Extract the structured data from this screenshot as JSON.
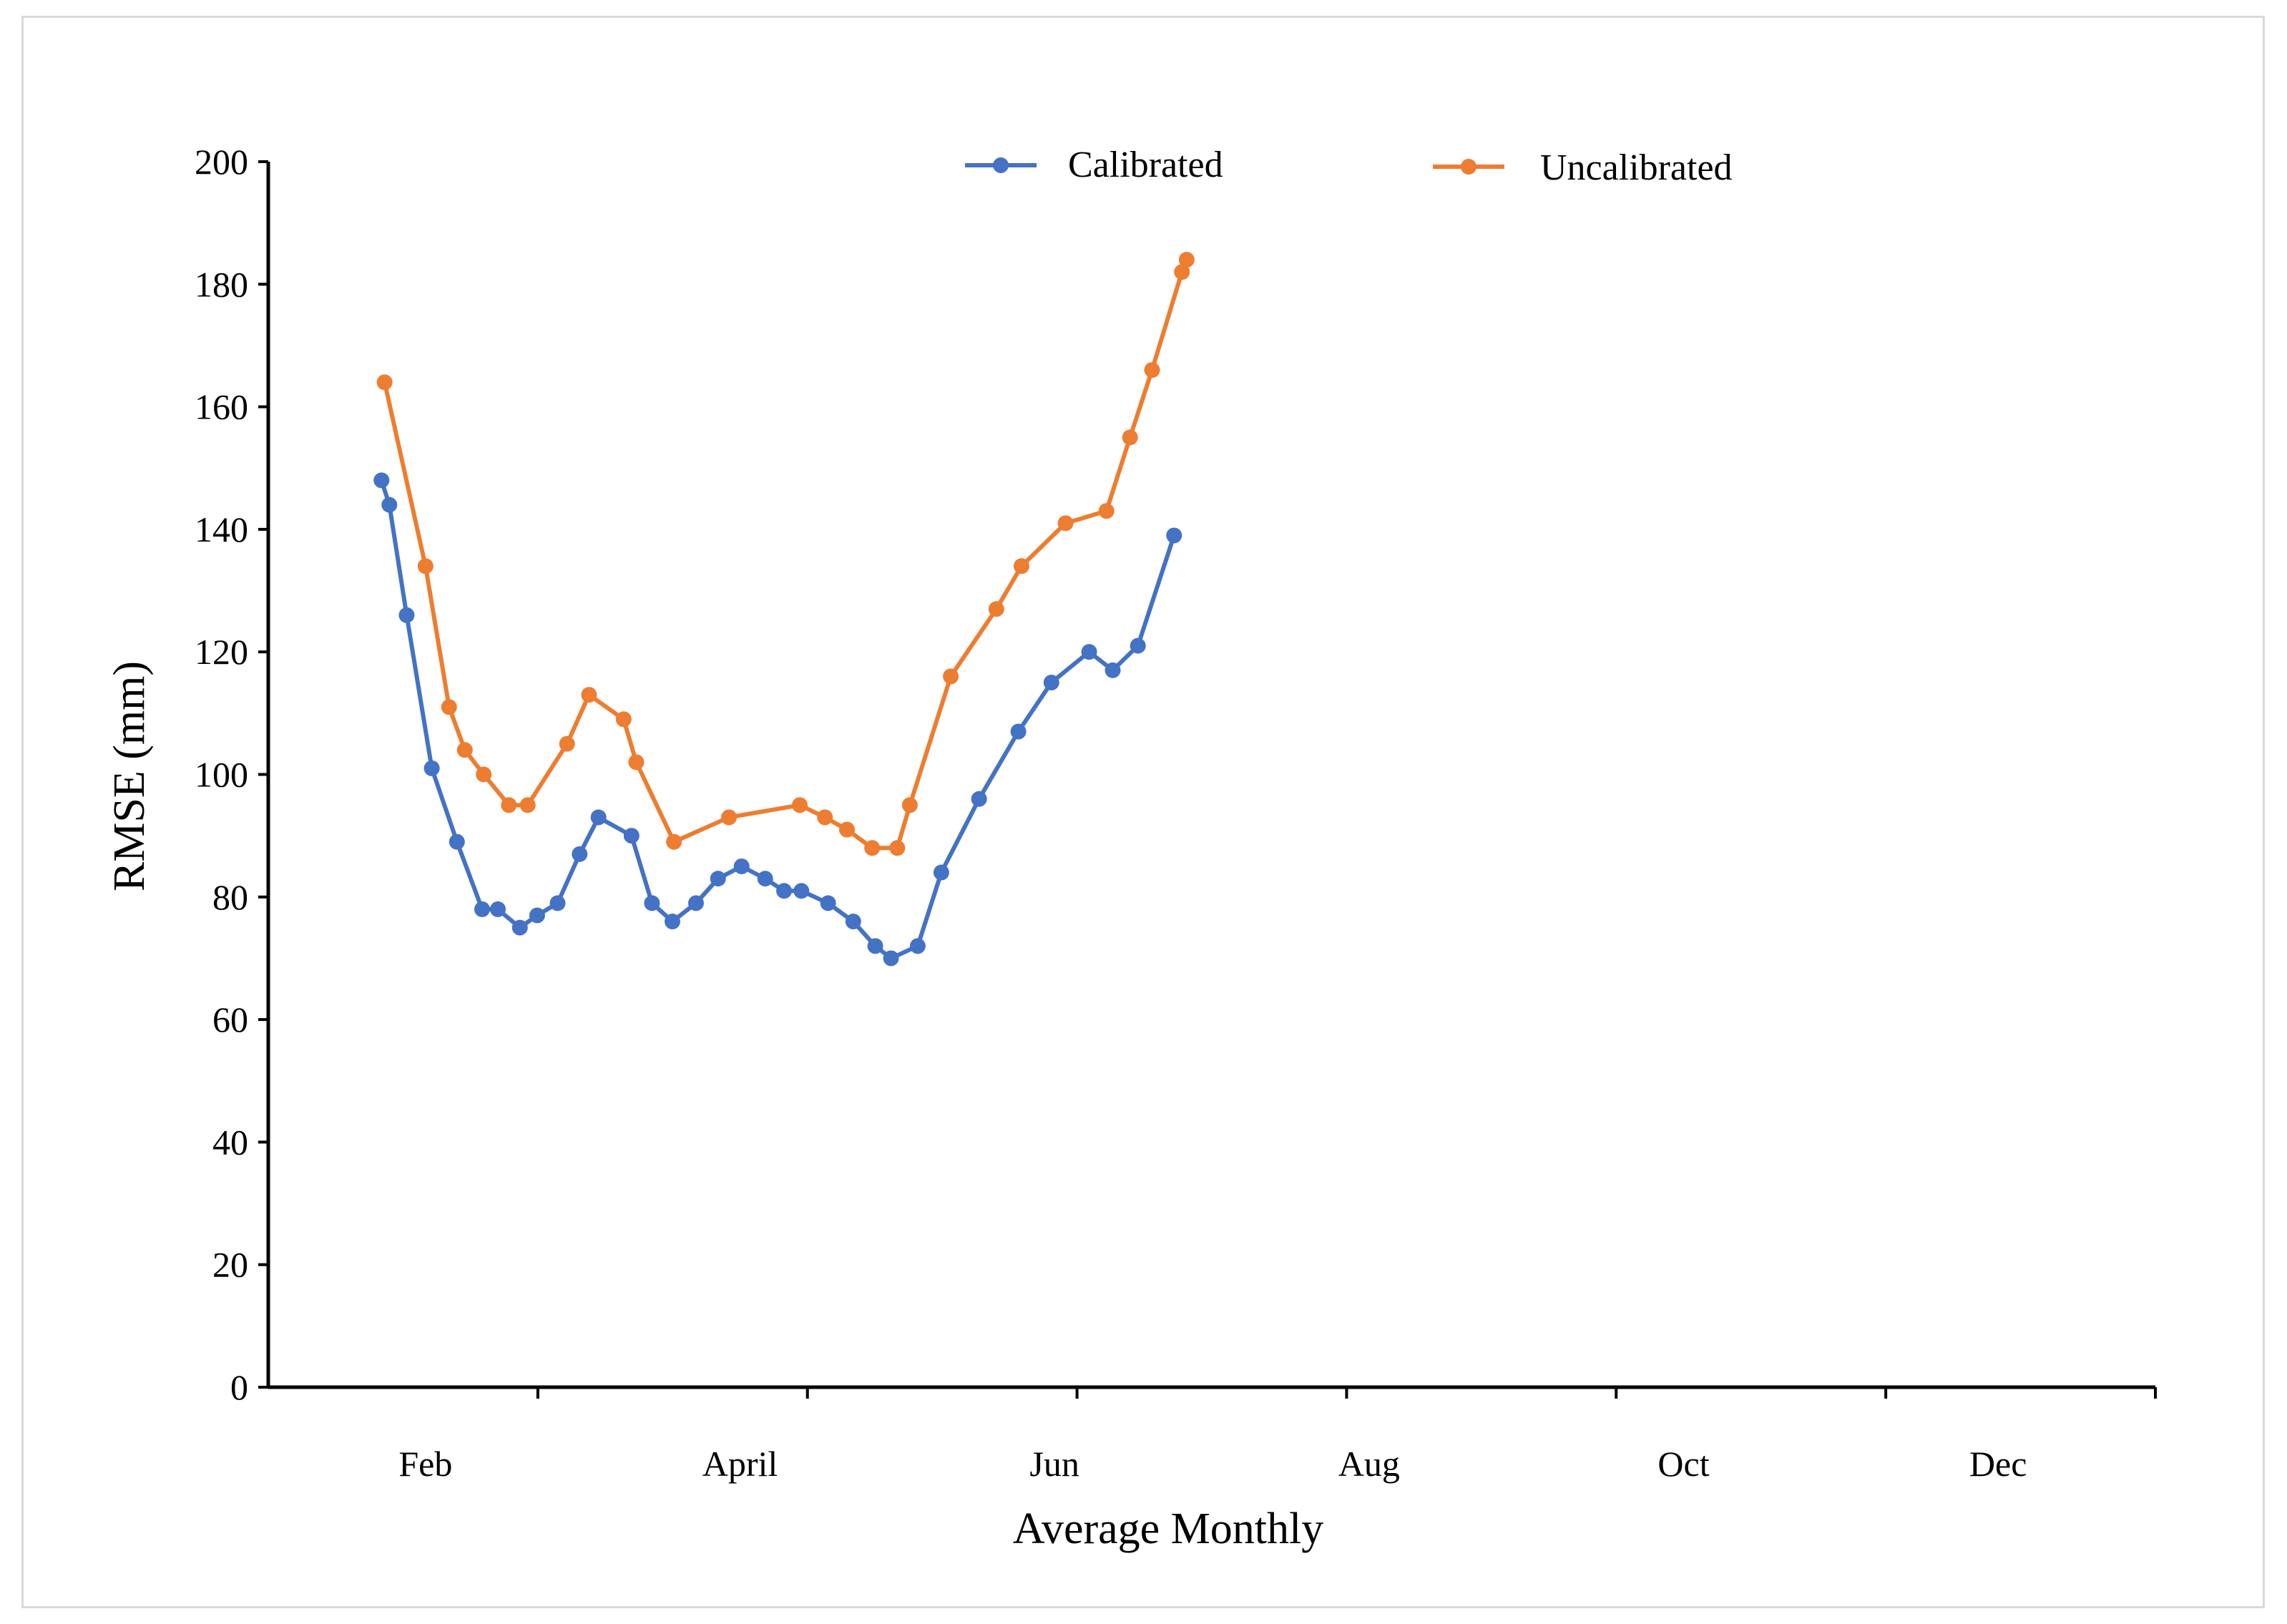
{
  "chart_data": {
    "type": "line",
    "xlabel": "Average Monthly",
    "ylabel": "RMSE (mm)",
    "ylim": [
      0,
      200
    ],
    "yticks": [
      0,
      20,
      40,
      60,
      80,
      100,
      120,
      140,
      160,
      180,
      200
    ],
    "xlim": [
      0,
      12
    ],
    "x_tick_labels": [
      {
        "label": "Feb",
        "x": 1
      },
      {
        "label": "April",
        "x": 3
      },
      {
        "label": "Jun",
        "x": 5
      },
      {
        "label": "Aug",
        "x": 7
      },
      {
        "label": "Oct",
        "x": 9
      },
      {
        "label": "Dec",
        "x": 11
      }
    ],
    "grid": false,
    "legend_position": "top",
    "series": [
      {
        "name": "Calibrated",
        "color": "#4472c4",
        "points": [
          [
            0.72,
            148
          ],
          [
            0.77,
            144
          ],
          [
            0.88,
            126
          ],
          [
            1.04,
            101
          ],
          [
            1.2,
            89
          ],
          [
            1.36,
            78
          ],
          [
            1.46,
            78
          ],
          [
            1.6,
            75
          ],
          [
            1.71,
            77
          ],
          [
            1.84,
            79
          ],
          [
            1.98,
            87
          ],
          [
            2.1,
            93
          ],
          [
            2.31,
            90
          ],
          [
            2.44,
            79
          ],
          [
            2.57,
            76
          ],
          [
            2.72,
            79
          ],
          [
            2.86,
            83
          ],
          [
            3.01,
            85
          ],
          [
            3.16,
            83
          ],
          [
            3.28,
            81
          ],
          [
            3.39,
            81
          ],
          [
            3.56,
            79
          ],
          [
            3.72,
            76
          ],
          [
            3.86,
            72
          ],
          [
            3.96,
            70
          ],
          [
            4.13,
            72
          ],
          [
            4.28,
            84
          ],
          [
            4.52,
            96
          ],
          [
            4.77,
            107
          ],
          [
            4.98,
            115
          ],
          [
            5.22,
            120
          ],
          [
            5.37,
            117
          ],
          [
            5.53,
            121
          ],
          [
            5.76,
            139
          ]
        ]
      },
      {
        "name": "Uncalibrated",
        "color": "#ed7d31",
        "points": [
          [
            0.74,
            164
          ],
          [
            1.0,
            134
          ],
          [
            1.15,
            111
          ],
          [
            1.25,
            104
          ],
          [
            1.37,
            100
          ],
          [
            1.53,
            95
          ],
          [
            1.65,
            95
          ],
          [
            1.9,
            105
          ],
          [
            2.04,
            113
          ],
          [
            2.26,
            109
          ],
          [
            2.34,
            102
          ],
          [
            2.58,
            89
          ],
          [
            2.93,
            93
          ],
          [
            3.38,
            95
          ],
          [
            3.54,
            93
          ],
          [
            3.68,
            91
          ],
          [
            3.84,
            88
          ],
          [
            4.0,
            88
          ],
          [
            4.08,
            95
          ],
          [
            4.34,
            116
          ],
          [
            4.63,
            127
          ],
          [
            4.79,
            134
          ],
          [
            5.07,
            141
          ],
          [
            5.33,
            143
          ],
          [
            5.48,
            155
          ],
          [
            5.62,
            166
          ],
          [
            5.81,
            182
          ],
          [
            5.84,
            184
          ]
        ]
      }
    ]
  }
}
